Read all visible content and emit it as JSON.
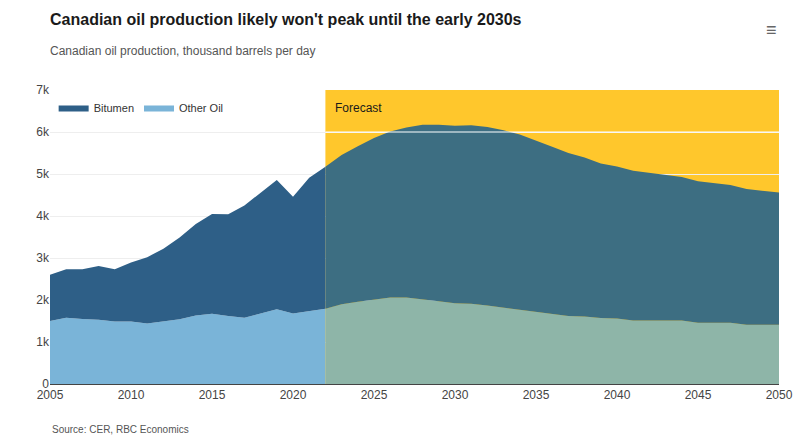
{
  "chart_data": {
    "type": "area",
    "stacked": true,
    "title": "Canadian oil production likely won't peak until the early 2030s",
    "subtitle": "Canadian oil production, thousand barrels per day",
    "source": "Source: CER, RBC Economics",
    "annotations": [
      "≡"
    ],
    "x": [
      2005,
      2006,
      2007,
      2008,
      2009,
      2010,
      2011,
      2012,
      2013,
      2014,
      2015,
      2016,
      2017,
      2018,
      2019,
      2020,
      2021,
      2022
    ],
    "forecast": {
      "start": 2022,
      "label": "Forecast",
      "color": "#FFC72C",
      "x": [
        2022,
        2023,
        2024,
        2025,
        2026,
        2027,
        2028,
        2029,
        2030,
        2031,
        2032,
        2033,
        2034,
        2035,
        2036,
        2037,
        2038,
        2039,
        2040,
        2041,
        2042,
        2043,
        2044,
        2045,
        2046,
        2047,
        2048,
        2049,
        2050
      ]
    },
    "series": [
      {
        "name": "Other Oil",
        "color": "#7ab4d8",
        "values": [
          1500,
          1580,
          1550,
          1530,
          1490,
          1490,
          1440,
          1490,
          1540,
          1630,
          1670,
          1620,
          1580,
          1680,
          1780,
          1680,
          1730,
          1790
        ],
        "forecast_color": "#8eb5a8",
        "forecast_values": [
          1790,
          1900,
          1960,
          2010,
          2060,
          2060,
          2020,
          1970,
          1920,
          1910,
          1870,
          1820,
          1770,
          1720,
          1670,
          1620,
          1610,
          1570,
          1560,
          1510,
          1510,
          1510,
          1510,
          1460,
          1460,
          1460,
          1410,
          1410,
          1410
        ]
      },
      {
        "name": "Bitumen",
        "color": "#2e5f87",
        "values": [
          1100,
          1150,
          1180,
          1280,
          1240,
          1400,
          1580,
          1730,
          1950,
          2180,
          2380,
          2420,
          2670,
          2880,
          3080,
          2780,
          3180,
          3380
        ],
        "forecast_color": "#3d6e82",
        "forecast_values": [
          3380,
          3550,
          3700,
          3850,
          3950,
          4050,
          4150,
          4200,
          4230,
          4250,
          4250,
          4220,
          4170,
          4080,
          3980,
          3880,
          3780,
          3680,
          3620,
          3570,
          3520,
          3470,
          3420,
          3370,
          3320,
          3280,
          3230,
          3190,
          3150
        ]
      }
    ],
    "hline": {
      "y": 6000,
      "color": "#ffffff"
    },
    "xlim": [
      2005,
      2050
    ],
    "xticks": [
      2005,
      2010,
      2015,
      2020,
      2025,
      2030,
      2035,
      2040,
      2045,
      2050
    ],
    "ylim": [
      0,
      7000
    ],
    "yticks": [
      0,
      {
        "value": 1000,
        "label": "1k"
      },
      {
        "value": 2000,
        "label": "2k"
      },
      {
        "value": 3000,
        "label": "3k"
      },
      {
        "value": 4000,
        "label": "4k"
      },
      {
        "value": 5000,
        "label": "5k"
      },
      {
        "value": 6000,
        "label": "6k"
      },
      {
        "value": 7000,
        "label": "7k"
      }
    ],
    "grid": true,
    "legend": "upper left"
  }
}
